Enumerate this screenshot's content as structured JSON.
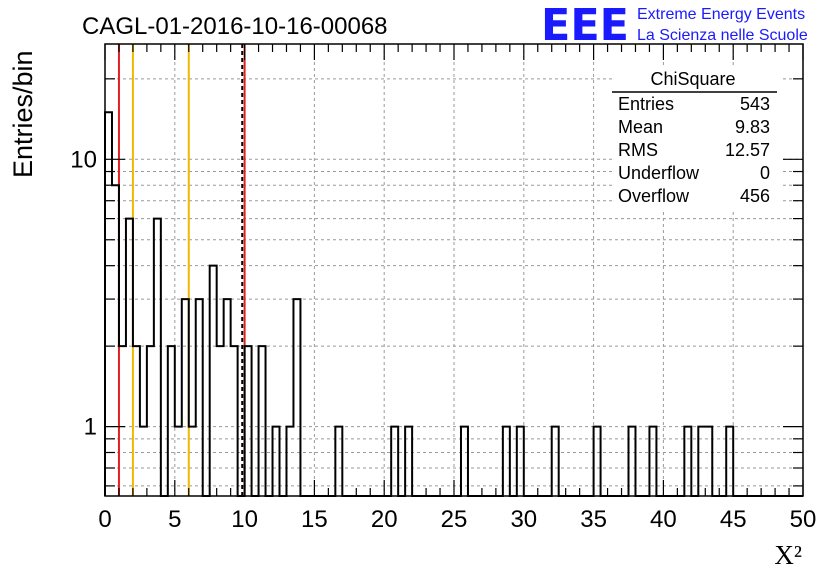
{
  "chart_data": {
    "type": "histogram",
    "title": "CAGL-01-2016-10-16-00068",
    "xlabel": "X²",
    "ylabel": "Entries/bin",
    "xlim": [
      0,
      50
    ],
    "ylim": [
      0.55,
      27
    ],
    "y_scale": "log",
    "grid": true,
    "x_ticks": [
      "0",
      "5",
      "10",
      "15",
      "20",
      "25",
      "30",
      "35",
      "40",
      "45",
      "50"
    ],
    "y_tick_labels": [
      {
        "value": 1,
        "label": "1"
      },
      {
        "value": 10,
        "label": "10"
      }
    ],
    "bin_width": 0.5,
    "bins": [
      {
        "x": 0.0,
        "y": 15
      },
      {
        "x": 0.5,
        "y": 8
      },
      {
        "x": 1.0,
        "y": 2
      },
      {
        "x": 1.5,
        "y": 6
      },
      {
        "x": 2.0,
        "y": 2
      },
      {
        "x": 2.5,
        "y": 1
      },
      {
        "x": 3.0,
        "y": 2
      },
      {
        "x": 3.5,
        "y": 6
      },
      {
        "x": 4.5,
        "y": 2
      },
      {
        "x": 5.0,
        "y": 1
      },
      {
        "x": 5.5,
        "y": 3
      },
      {
        "x": 6.0,
        "y": 1
      },
      {
        "x": 6.5,
        "y": 3
      },
      {
        "x": 7.5,
        "y": 4
      },
      {
        "x": 8.0,
        "y": 2
      },
      {
        "x": 8.5,
        "y": 3
      },
      {
        "x": 9.0,
        "y": 2
      },
      {
        "x": 10.0,
        "y": 2
      },
      {
        "x": 11.0,
        "y": 2
      },
      {
        "x": 12.0,
        "y": 1
      },
      {
        "x": 13.0,
        "y": 1
      },
      {
        "x": 13.5,
        "y": 3
      },
      {
        "x": 16.5,
        "y": 1
      },
      {
        "x": 20.5,
        "y": 1
      },
      {
        "x": 21.5,
        "y": 1
      },
      {
        "x": 25.5,
        "y": 1
      },
      {
        "x": 28.5,
        "y": 1
      },
      {
        "x": 29.5,
        "y": 1
      },
      {
        "x": 32.0,
        "y": 1
      },
      {
        "x": 35.0,
        "y": 1
      },
      {
        "x": 37.5,
        "y": 1
      },
      {
        "x": 39.0,
        "y": 1
      },
      {
        "x": 41.5,
        "y": 1
      },
      {
        "x": 42.5,
        "y": 1
      },
      {
        "x": 43.0,
        "y": 1
      },
      {
        "x": 44.5,
        "y": 1
      }
    ],
    "reference_lines": [
      {
        "x": 1.0,
        "color": "#e02020",
        "style": "solid"
      },
      {
        "x": 2.0,
        "color": "#f0b800",
        "style": "solid"
      },
      {
        "x": 6.0,
        "color": "#f0b800",
        "style": "solid"
      },
      {
        "x": 9.83,
        "color": "#000000",
        "style": "dashed"
      },
      {
        "x": 10.0,
        "color": "#e02020",
        "style": "solid"
      }
    ],
    "stats_box": {
      "title": "ChiSquare",
      "rows": [
        {
          "label": "Entries",
          "value": "543"
        },
        {
          "label": "Mean",
          "value": "9.83"
        },
        {
          "label": "RMS",
          "value": "12.57"
        },
        {
          "label": "Underflow",
          "value": "0"
        },
        {
          "label": "Overflow",
          "value": "456"
        }
      ]
    },
    "colors": {
      "histogram": "#000000",
      "grid": "#9a9a9a",
      "logo": "#1a1aff"
    }
  },
  "logo": {
    "mark": "EEE",
    "line1": "Extreme Energy Events",
    "line2": "La Scienza nelle Scuole"
  }
}
